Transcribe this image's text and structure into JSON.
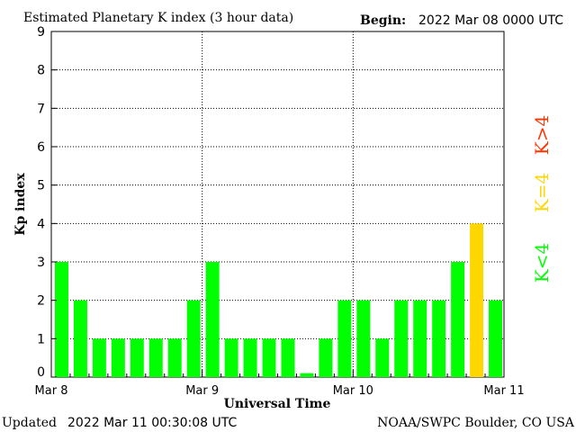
{
  "header": {
    "title": "Estimated Planetary K index (3 hour data)",
    "begin_label": "Begin:",
    "begin_value": "2022 Mar 08 0000 UTC"
  },
  "footer": {
    "updated_label": "Updated",
    "updated_value": "2022 Mar 11 00:30:08 UTC",
    "source": "NOAA/SWPC Boulder, CO USA"
  },
  "legend": {
    "high": "K>4",
    "equal": "K=4",
    "low": "K<4"
  },
  "colors": {
    "low": "#00ff00",
    "equal": "#ffd700",
    "high": "#ff3300",
    "axis": "#000000"
  },
  "chart_data": {
    "type": "bar",
    "ylabel": "Kp index",
    "xlabel": "Universal Time",
    "ylim": [
      0,
      9
    ],
    "yticks": [
      0,
      1,
      2,
      3,
      4,
      5,
      6,
      7,
      8,
      9
    ],
    "day_labels": [
      "Mar 8",
      "Mar 9",
      "Mar 10",
      "Mar 11"
    ],
    "bars_per_day": 8,
    "values": [
      3,
      2,
      1,
      1,
      1,
      1,
      1,
      2,
      3,
      1,
      1,
      1,
      1,
      0.1,
      1,
      2,
      2,
      1,
      2,
      2,
      2,
      3,
      4,
      2
    ],
    "grid": "dotted, at each y tick and each day boundary"
  }
}
